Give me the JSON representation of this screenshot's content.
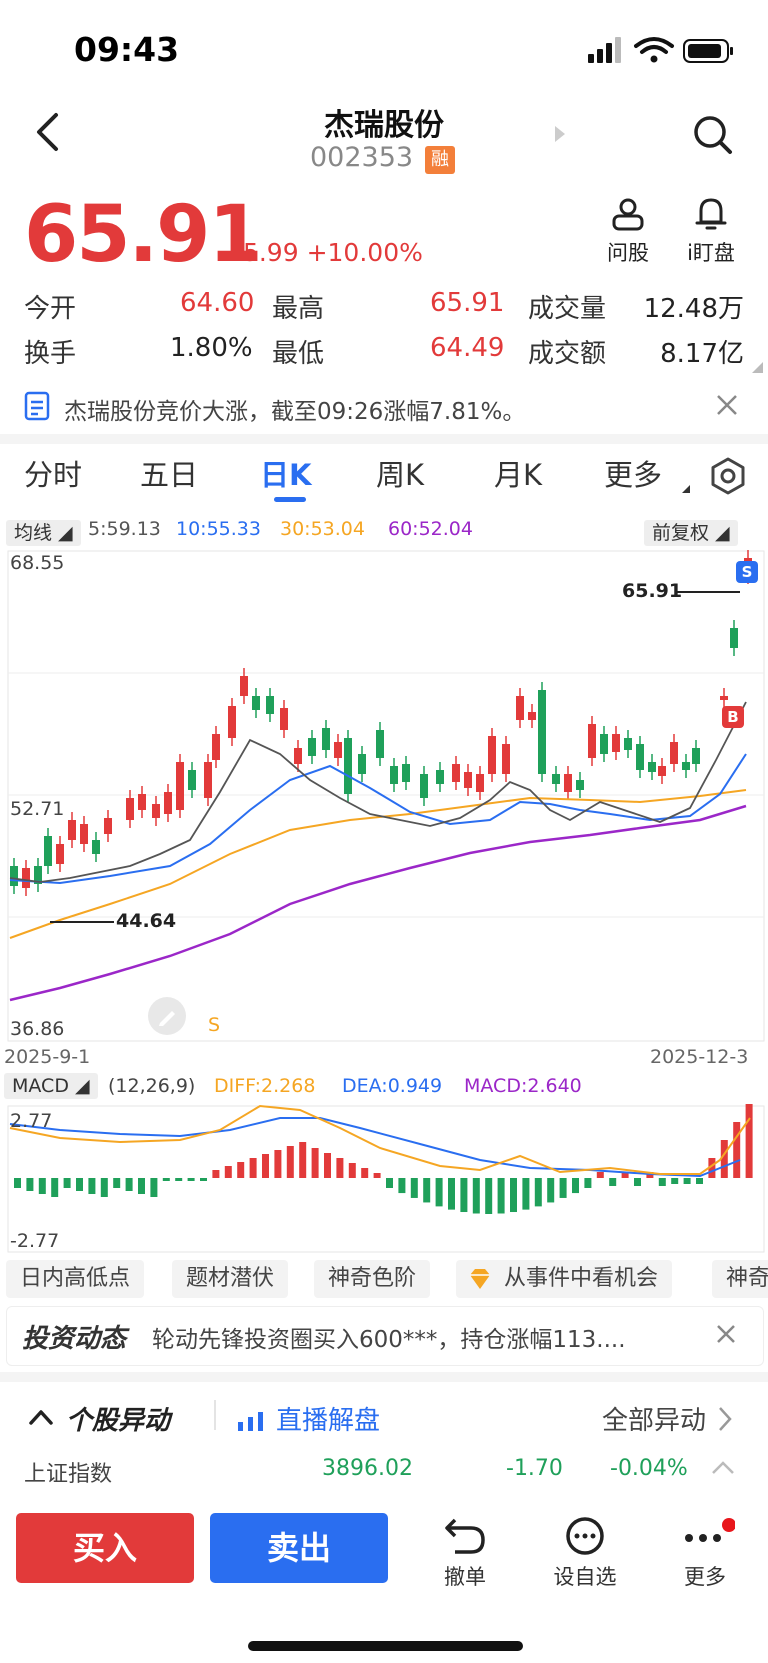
{
  "status": {
    "time": "09:43"
  },
  "header": {
    "title": "杰瑞股份",
    "code": "002353",
    "margin_tag": "融"
  },
  "quote": {
    "price": "65.91",
    "change": "+5.99",
    "change_pct": "+10.00%",
    "ask_label": "问股",
    "watch_label": "i盯盘",
    "stats": [
      {
        "label": "今开",
        "value": "64.60"
      },
      {
        "label": "最高",
        "value": "65.91"
      },
      {
        "label": "成交量",
        "value": "12.48万"
      },
      {
        "label": "换手",
        "value": "1.80%"
      },
      {
        "label": "最低",
        "value": "64.49"
      },
      {
        "label": "成交额",
        "value": "8.17亿"
      }
    ]
  },
  "notice": {
    "text": "杰瑞股份竞价大涨，截至09:26涨幅7.81%。"
  },
  "tabs": [
    "分时",
    "五日",
    "日K",
    "周K",
    "月K",
    "更多"
  ],
  "ma": {
    "selector": "均线",
    "ma5": "5:59.13",
    "ma10": "10:55.33",
    "ma30": "30:53.04",
    "ma60": "60:52.04",
    "adjust": "前复权"
  },
  "kline": {
    "y_top": "68.55",
    "y_mid": "52.71",
    "y_bot": "36.86",
    "last_marker": "65.91",
    "low_marker": "44.64",
    "date_start": "2025-9-1",
    "date_end": "2025-12-3",
    "sell_tag": "S",
    "buy_tag": "B",
    "s_mark": "S"
  },
  "macd": {
    "selector": "MACD",
    "params": "(12,26,9)",
    "diff": "DIFF:2.268",
    "dea": "DEA:0.949",
    "macd": "MACD:2.640",
    "y_top": "2.77",
    "y_bot": "-2.77"
  },
  "features": [
    "日内高低点",
    "题材潜伏",
    "神奇色阶",
    "从事件中看机会",
    "神奇"
  ],
  "news": {
    "tag": "投资动态",
    "text": "轮动先锋投资圈买入600***，持仓涨幅113...."
  },
  "movement": {
    "title": "个股异动",
    "live": "直播解盘",
    "all": "全部异动"
  },
  "index": {
    "name": "上证指数",
    "value": "3896.02",
    "change": "-1.70",
    "pct": "-0.04%"
  },
  "actions": {
    "buy": "买入",
    "sell": "卖出",
    "cancel": "撤单",
    "watchlist": "设自选",
    "more": "更多"
  },
  "colors": {
    "up": "#e23a3a",
    "down": "#1fa05a",
    "accent": "#2a6ef0",
    "ma5": "#555555",
    "ma10": "#2a6ef0",
    "ma30": "#f5a623",
    "ma60": "#9b27c8"
  }
}
